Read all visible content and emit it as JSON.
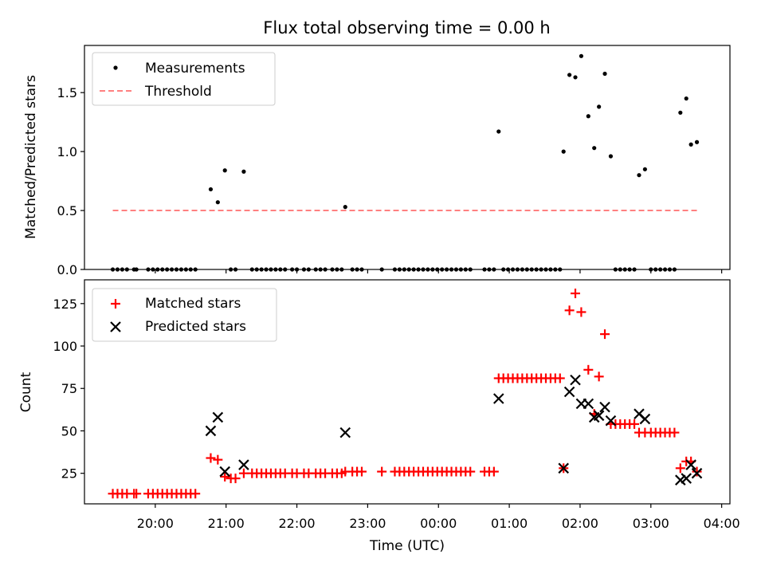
{
  "figure": {
    "title": "Flux total observing time = 0.00 h",
    "xlabel": "Time (UTC)",
    "x_ticks": [
      {
        "t": 1200,
        "label": "20:00"
      },
      {
        "t": 1260,
        "label": "21:00"
      },
      {
        "t": 1320,
        "label": "22:00"
      },
      {
        "t": 1380,
        "label": "23:00"
      },
      {
        "t": 1440,
        "label": "00:00"
      },
      {
        "t": 1500,
        "label": "01:00"
      },
      {
        "t": 1560,
        "label": "02:00"
      },
      {
        "t": 1620,
        "label": "03:00"
      },
      {
        "t": 1680,
        "label": "04:00"
      }
    ],
    "xlim": [
      1140,
      1687
    ]
  },
  "chart_data": [
    {
      "type": "scatter",
      "ylabel": "Matched/Predicted stars",
      "ylim": [
        0,
        1.9
      ],
      "yticks": [
        0.0,
        0.5,
        1.0,
        1.5
      ],
      "ytick_labels": [
        "0.0",
        "0.5",
        "1.0",
        "1.5"
      ],
      "legend": "top-left",
      "series": [
        {
          "name": "Measurements",
          "marker": "dot",
          "color": "#000000",
          "points": [
            [
              1164,
              0
            ],
            [
              1168,
              0
            ],
            [
              1172,
              0
            ],
            [
              1176,
              0
            ],
            [
              1182,
              0
            ],
            [
              1184,
              0
            ],
            [
              1194,
              0
            ],
            [
              1198,
              0
            ],
            [
              1202,
              0
            ],
            [
              1206,
              0
            ],
            [
              1210,
              0
            ],
            [
              1214,
              0
            ],
            [
              1218,
              0
            ],
            [
              1222,
              0
            ],
            [
              1226,
              0
            ],
            [
              1230,
              0
            ],
            [
              1234,
              0
            ],
            [
              1247,
              0.68
            ],
            [
              1253,
              0.57
            ],
            [
              1259,
              0.84
            ],
            [
              1264,
              0
            ],
            [
              1268,
              0
            ],
            [
              1275,
              0.83
            ],
            [
              1282,
              0
            ],
            [
              1286,
              0
            ],
            [
              1290,
              0
            ],
            [
              1294,
              0
            ],
            [
              1298,
              0
            ],
            [
              1302,
              0
            ],
            [
              1306,
              0
            ],
            [
              1310,
              0
            ],
            [
              1316,
              0
            ],
            [
              1320,
              0
            ],
            [
              1326,
              0
            ],
            [
              1330,
              0
            ],
            [
              1336,
              0
            ],
            [
              1340,
              0
            ],
            [
              1344,
              0
            ],
            [
              1350,
              0
            ],
            [
              1354,
              0
            ],
            [
              1358,
              0
            ],
            [
              1361,
              0.53
            ],
            [
              1367,
              0
            ],
            [
              1371,
              0
            ],
            [
              1375,
              0
            ],
            [
              1392,
              0
            ],
            [
              1403,
              0
            ],
            [
              1407,
              0
            ],
            [
              1411,
              0
            ],
            [
              1415,
              0
            ],
            [
              1419,
              0
            ],
            [
              1423,
              0
            ],
            [
              1427,
              0
            ],
            [
              1431,
              0
            ],
            [
              1435,
              0
            ],
            [
              1439,
              0
            ],
            [
              1443,
              0
            ],
            [
              1447,
              0
            ],
            [
              1451,
              0
            ],
            [
              1455,
              0
            ],
            [
              1459,
              0
            ],
            [
              1463,
              0
            ],
            [
              1467,
              0
            ],
            [
              1479,
              0
            ],
            [
              1483,
              0
            ],
            [
              1487,
              0
            ],
            [
              1491,
              1.17
            ],
            [
              1495,
              0
            ],
            [
              1499,
              0
            ],
            [
              1503,
              0
            ],
            [
              1507,
              0
            ],
            [
              1511,
              0
            ],
            [
              1515,
              0
            ],
            [
              1519,
              0
            ],
            [
              1523,
              0
            ],
            [
              1527,
              0
            ],
            [
              1531,
              0
            ],
            [
              1535,
              0
            ],
            [
              1539,
              0
            ],
            [
              1543,
              0
            ],
            [
              1546,
              1.0
            ],
            [
              1551,
              1.65
            ],
            [
              1556,
              1.63
            ],
            [
              1561,
              1.81
            ],
            [
              1567,
              1.3
            ],
            [
              1572,
              1.03
            ],
            [
              1576,
              1.38
            ],
            [
              1581,
              1.66
            ],
            [
              1586,
              0.96
            ],
            [
              1590,
              0
            ],
            [
              1594,
              0
            ],
            [
              1598,
              0
            ],
            [
              1602,
              0
            ],
            [
              1606,
              0
            ],
            [
              1610,
              0.8
            ],
            [
              1615,
              0.85
            ],
            [
              1620,
              0
            ],
            [
              1624,
              0
            ],
            [
              1628,
              0
            ],
            [
              1632,
              0
            ],
            [
              1636,
              0
            ],
            [
              1640,
              0
            ],
            [
              1645,
              1.33
            ],
            [
              1650,
              1.45
            ],
            [
              1654,
              1.06
            ],
            [
              1659,
              1.08
            ]
          ]
        },
        {
          "name": "Threshold",
          "marker": "dashed-line",
          "color": "#ff8080",
          "points": [
            [
              1164,
              0.5
            ],
            [
              1659,
              0.5
            ]
          ]
        }
      ]
    },
    {
      "type": "scatter",
      "ylabel": "Count",
      "ylim": [
        7,
        139
      ],
      "yticks": [
        25,
        50,
        75,
        100,
        125
      ],
      "ytick_labels": [
        "25",
        "50",
        "75",
        "100",
        "125"
      ],
      "legend": "top-left",
      "series": [
        {
          "name": "Matched stars",
          "marker": "plus",
          "color": "#ff0000",
          "points": [
            [
              1164,
              13
            ],
            [
              1168,
              13
            ],
            [
              1172,
              13
            ],
            [
              1176,
              13
            ],
            [
              1182,
              13
            ],
            [
              1184,
              13
            ],
            [
              1194,
              13
            ],
            [
              1198,
              13
            ],
            [
              1202,
              13
            ],
            [
              1206,
              13
            ],
            [
              1210,
              13
            ],
            [
              1214,
              13
            ],
            [
              1218,
              13
            ],
            [
              1222,
              13
            ],
            [
              1226,
              13
            ],
            [
              1230,
              13
            ],
            [
              1234,
              13
            ],
            [
              1247,
              34
            ],
            [
              1253,
              33
            ],
            [
              1259,
              23
            ],
            [
              1264,
              22
            ],
            [
              1268,
              22
            ],
            [
              1275,
              25
            ],
            [
              1282,
              25
            ],
            [
              1286,
              25
            ],
            [
              1290,
              25
            ],
            [
              1294,
              25
            ],
            [
              1298,
              25
            ],
            [
              1302,
              25
            ],
            [
              1306,
              25
            ],
            [
              1310,
              25
            ],
            [
              1316,
              25
            ],
            [
              1320,
              25
            ],
            [
              1326,
              25
            ],
            [
              1330,
              25
            ],
            [
              1336,
              25
            ],
            [
              1340,
              25
            ],
            [
              1344,
              25
            ],
            [
              1350,
              25
            ],
            [
              1354,
              25
            ],
            [
              1358,
              25
            ],
            [
              1361,
              26
            ],
            [
              1367,
              26
            ],
            [
              1371,
              26
            ],
            [
              1375,
              26
            ],
            [
              1392,
              26
            ],
            [
              1403,
              26
            ],
            [
              1407,
              26
            ],
            [
              1411,
              26
            ],
            [
              1415,
              26
            ],
            [
              1419,
              26
            ],
            [
              1423,
              26
            ],
            [
              1427,
              26
            ],
            [
              1431,
              26
            ],
            [
              1435,
              26
            ],
            [
              1439,
              26
            ],
            [
              1443,
              26
            ],
            [
              1447,
              26
            ],
            [
              1451,
              26
            ],
            [
              1455,
              26
            ],
            [
              1459,
              26
            ],
            [
              1463,
              26
            ],
            [
              1467,
              26
            ],
            [
              1479,
              26
            ],
            [
              1483,
              26
            ],
            [
              1487,
              26
            ],
            [
              1491,
              81
            ],
            [
              1495,
              81
            ],
            [
              1499,
              81
            ],
            [
              1503,
              81
            ],
            [
              1507,
              81
            ],
            [
              1511,
              81
            ],
            [
              1515,
              81
            ],
            [
              1519,
              81
            ],
            [
              1523,
              81
            ],
            [
              1527,
              81
            ],
            [
              1531,
              81
            ],
            [
              1535,
              81
            ],
            [
              1539,
              81
            ],
            [
              1543,
              81
            ],
            [
              1546,
              28
            ],
            [
              1551,
              121
            ],
            [
              1556,
              131
            ],
            [
              1561,
              120
            ],
            [
              1567,
              86
            ],
            [
              1572,
              60
            ],
            [
              1576,
              82
            ],
            [
              1581,
              107
            ],
            [
              1586,
              54
            ],
            [
              1590,
              54
            ],
            [
              1594,
              54
            ],
            [
              1598,
              54
            ],
            [
              1602,
              54
            ],
            [
              1606,
              54
            ],
            [
              1610,
              49
            ],
            [
              1615,
              49
            ],
            [
              1620,
              49
            ],
            [
              1624,
              49
            ],
            [
              1628,
              49
            ],
            [
              1632,
              49
            ],
            [
              1636,
              49
            ],
            [
              1640,
              49
            ],
            [
              1645,
              28
            ],
            [
              1650,
              32
            ],
            [
              1654,
              32
            ],
            [
              1659,
              26
            ]
          ]
        },
        {
          "name": "Predicted stars",
          "marker": "x",
          "color": "#000000",
          "points": [
            [
              1247,
              50
            ],
            [
              1253,
              58
            ],
            [
              1259,
              26
            ],
            [
              1275,
              30
            ],
            [
              1361,
              49
            ],
            [
              1491,
              69
            ],
            [
              1546,
              28
            ],
            [
              1551,
              73
            ],
            [
              1556,
              80
            ],
            [
              1561,
              66
            ],
            [
              1567,
              66
            ],
            [
              1572,
              58
            ],
            [
              1576,
              59
            ],
            [
              1581,
              64
            ],
            [
              1586,
              56
            ],
            [
              1610,
              60
            ],
            [
              1615,
              57
            ],
            [
              1645,
              21
            ],
            [
              1650,
              22
            ],
            [
              1654,
              30
            ],
            [
              1659,
              25
            ]
          ]
        }
      ]
    }
  ]
}
